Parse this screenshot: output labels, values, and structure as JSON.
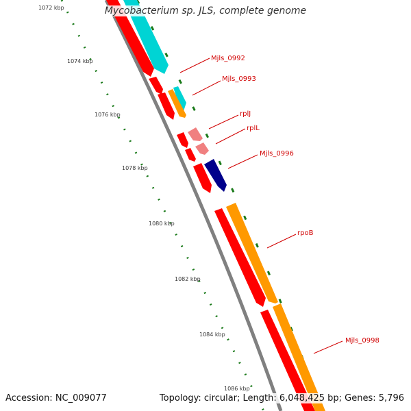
{
  "title": "Mycobacterium sp. JLS, complete genome",
  "footer": {
    "accession": "Accession: NC_009077",
    "summary": "Topology: circular; Length: 6,048,425 bp; Genes: 5,796"
  },
  "ticks": [
    "1072 kbp",
    "1074 kbp",
    "1076 kbp",
    "1078 kbp",
    "1080 kbp",
    "1082 kbp",
    "1084 kbp",
    "1086 kbp"
  ],
  "gene_labels": [
    "Mjls_0992",
    "Mjls_0993",
    "rplJ",
    "rplL",
    "Mjls_0996",
    "rpoB",
    "Mjls_0998"
  ],
  "colors": {
    "red": "#ff0000",
    "cyan": "#00d4d4",
    "orange": "#ff9900",
    "pink": "#f08080",
    "navy": "#00008b",
    "backbone": "#808080",
    "ticks": "#1a7a1a",
    "label": "#d10000"
  }
}
